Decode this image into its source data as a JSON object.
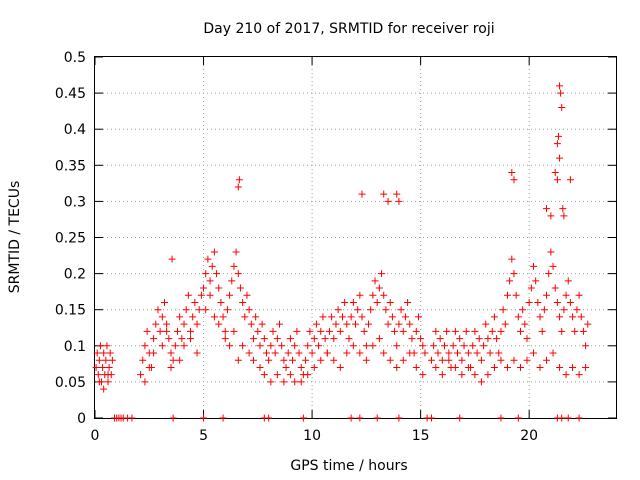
{
  "chart_data": {
    "type": "scatter",
    "title": "Day 210 of 2017, SRMTID for receiver roji",
    "xlabel": "GPS time / hours",
    "ylabel": "SRMTID / TECUs",
    "xlim": [
      0,
      24
    ],
    "ylim": [
      0,
      0.5
    ],
    "xticks": [
      0,
      5,
      10,
      15,
      20
    ],
    "yticks": [
      0,
      0.05,
      0.1,
      0.15,
      0.2,
      0.25,
      0.3,
      0.35,
      0.4,
      0.45,
      0.5
    ],
    "ytick_labels": [
      "0",
      "0.05",
      "0.1",
      "0.15",
      "0.2",
      "0.25",
      "0.3",
      "0.35",
      "0.4",
      "0.45",
      "0.5"
    ],
    "grid": true,
    "marker": "+",
    "color": "#ff0000",
    "series": [
      {
        "name": "SRMTID",
        "x": [
          0.05,
          0.1,
          0.15,
          0.2,
          0.25,
          0.3,
          0.35,
          0.4,
          0.45,
          0.5,
          0.55,
          0.6,
          0.65,
          0.7,
          0.75,
          0.8,
          2.1,
          2.2,
          2.3,
          2.4,
          2.5,
          2.6,
          2.7,
          2.8,
          2.9,
          3.0,
          3.1,
          3.2,
          3.3,
          3.4,
          3.5,
          3.55,
          3.6,
          3.7,
          3.8,
          3.9,
          4.0,
          4.1,
          4.2,
          4.3,
          4.4,
          4.5,
          4.6,
          4.7,
          4.8,
          4.9,
          5.0,
          5.1,
          5.2,
          5.3,
          5.4,
          5.5,
          5.6,
          5.7,
          5.8,
          5.9,
          6.0,
          6.1,
          6.2,
          6.3,
          6.4,
          6.5,
          6.6,
          6.7,
          6.8,
          6.9,
          7.0,
          7.1,
          7.2,
          7.3,
          7.4,
          7.5,
          7.6,
          7.7,
          7.8,
          7.9,
          8.0,
          8.1,
          8.2,
          8.3,
          8.4,
          8.5,
          8.6,
          8.7,
          8.8,
          8.9,
          9.0,
          9.1,
          9.2,
          9.3,
          9.4,
          9.5,
          9.6,
          9.7,
          9.8,
          9.9,
          10.0,
          10.1,
          10.2,
          10.3,
          10.4,
          10.5,
          10.6,
          10.7,
          10.8,
          10.9,
          11.0,
          11.1,
          11.2,
          11.3,
          11.4,
          11.5,
          11.6,
          11.7,
          11.8,
          11.9,
          12.0,
          12.1,
          12.2,
          12.3,
          12.4,
          12.5,
          12.6,
          12.7,
          12.8,
          12.9,
          13.0,
          13.1,
          13.2,
          13.3,
          13.4,
          13.5,
          13.6,
          13.7,
          13.8,
          13.9,
          14.0,
          14.1,
          14.2,
          14.3,
          14.4,
          14.5,
          14.6,
          14.7,
          14.8,
          14.9,
          15.0,
          15.1,
          15.2,
          15.5,
          15.6,
          15.7,
          15.8,
          15.9,
          16.0,
          16.1,
          16.2,
          16.3,
          16.4,
          16.5,
          16.6,
          16.7,
          16.8,
          16.9,
          17.0,
          17.1,
          17.2,
          17.3,
          17.4,
          17.5,
          17.6,
          17.7,
          17.8,
          17.9,
          18.0,
          18.1,
          18.2,
          18.3,
          18.4,
          18.5,
          18.6,
          18.7,
          18.8,
          18.9,
          19.0,
          19.1,
          19.2,
          19.3,
          19.4,
          19.5,
          19.6,
          19.7,
          19.8,
          19.9,
          20.0,
          20.1,
          20.2,
          20.3,
          20.4,
          20.5,
          20.6,
          20.7,
          20.8,
          20.9,
          21.0,
          21.1,
          21.2,
          21.3,
          21.4,
          21.5,
          21.6,
          21.7,
          21.8,
          21.9,
          22.0,
          22.1,
          22.2,
          22.3,
          22.4,
          22.5,
          22.6,
          22.7,
          0.2,
          0.4,
          0.6,
          2.3,
          2.5,
          2.7,
          3.1,
          3.3,
          3.5,
          3.9,
          4.1,
          4.4,
          4.7,
          5.1,
          5.3,
          5.5,
          5.7,
          6.0,
          6.2,
          6.4,
          6.6,
          6.8,
          7.1,
          7.3,
          7.6,
          7.8,
          8.1,
          8.4,
          8.7,
          9.0,
          9.2,
          9.5,
          9.8,
          10.1,
          10.4,
          10.7,
          11.0,
          11.3,
          11.6,
          11.9,
          12.2,
          12.5,
          12.8,
          13.1,
          13.3,
          13.6,
          13.9,
          14.2,
          14.5,
          14.8,
          15.1,
          15.7,
          16.0,
          16.3,
          16.6,
          16.9,
          17.2,
          17.5,
          17.8,
          18.1,
          18.4,
          18.7,
          19.0,
          19.3,
          19.6,
          19.9,
          20.2,
          20.5,
          20.8,
          21.1,
          21.4,
          21.7,
          22.0,
          22.3,
          22.6,
          6.6,
          6.65,
          12.3,
          13.3,
          13.5,
          13.9,
          14.0,
          19.2,
          19.3,
          21.2,
          21.3,
          21.35,
          21.4,
          21.45,
          21.5,
          21.4,
          21.3,
          21.55,
          21.6,
          21.9,
          20.8,
          21.0,
          0.9,
          1.0,
          1.1,
          1.2,
          1.3,
          1.5,
          1.7,
          3.6,
          5.0,
          5.9,
          7.8,
          8.0,
          9.6,
          11.8,
          12.2,
          13.0,
          14.0,
          15.3,
          15.5,
          16.8,
          18.7,
          19.5,
          21.3,
          21.5,
          21.8,
          22.3
        ],
        "y": [
          0.07,
          0.09,
          0.06,
          0.08,
          0.1,
          0.05,
          0.07,
          0.09,
          0.06,
          0.08,
          0.1,
          0.05,
          0.07,
          0.09,
          0.06,
          0.08,
          0.06,
          0.08,
          0.1,
          0.12,
          0.09,
          0.07,
          0.11,
          0.13,
          0.15,
          0.12,
          0.14,
          0.16,
          0.13,
          0.11,
          0.09,
          0.22,
          0.08,
          0.1,
          0.12,
          0.14,
          0.11,
          0.13,
          0.15,
          0.17,
          0.12,
          0.14,
          0.16,
          0.13,
          0.15,
          0.17,
          0.18,
          0.2,
          0.22,
          0.19,
          0.21,
          0.23,
          0.2,
          0.18,
          0.16,
          0.14,
          0.12,
          0.15,
          0.17,
          0.19,
          0.21,
          0.23,
          0.2,
          0.18,
          0.16,
          0.14,
          0.17,
          0.15,
          0.13,
          0.11,
          0.14,
          0.12,
          0.1,
          0.13,
          0.11,
          0.09,
          0.08,
          0.1,
          0.12,
          0.09,
          0.11,
          0.13,
          0.1,
          0.08,
          0.07,
          0.09,
          0.11,
          0.08,
          0.1,
          0.12,
          0.09,
          0.07,
          0.06,
          0.08,
          0.1,
          0.12,
          0.09,
          0.11,
          0.13,
          0.1,
          0.12,
          0.14,
          0.11,
          0.09,
          0.12,
          0.14,
          0.11,
          0.13,
          0.15,
          0.12,
          0.14,
          0.16,
          0.13,
          0.11,
          0.14,
          0.16,
          0.13,
          0.15,
          0.17,
          0.14,
          0.12,
          0.1,
          0.13,
          0.15,
          0.17,
          0.19,
          0.16,
          0.18,
          0.2,
          0.17,
          0.15,
          0.13,
          0.16,
          0.14,
          0.12,
          0.1,
          0.13,
          0.15,
          0.12,
          0.14,
          0.16,
          0.13,
          0.11,
          0.09,
          0.12,
          0.14,
          0.11,
          0.1,
          0.09,
          0.08,
          0.1,
          0.12,
          0.09,
          0.11,
          0.08,
          0.1,
          0.12,
          0.09,
          0.07,
          0.1,
          0.12,
          0.09,
          0.11,
          0.08,
          0.1,
          0.12,
          0.09,
          0.07,
          0.1,
          0.12,
          0.09,
          0.11,
          0.08,
          0.1,
          0.13,
          0.11,
          0.09,
          0.12,
          0.14,
          0.11,
          0.09,
          0.12,
          0.15,
          0.13,
          0.17,
          0.19,
          0.22,
          0.2,
          0.17,
          0.14,
          0.12,
          0.15,
          0.13,
          0.11,
          0.16,
          0.18,
          0.21,
          0.19,
          0.16,
          0.14,
          0.12,
          0.15,
          0.17,
          0.2,
          0.23,
          0.21,
          0.18,
          0.16,
          0.14,
          0.12,
          0.15,
          0.17,
          0.19,
          0.16,
          0.14,
          0.12,
          0.15,
          0.17,
          0.14,
          0.12,
          0.1,
          0.13,
          0.05,
          0.04,
          0.06,
          0.05,
          0.07,
          0.09,
          0.1,
          0.12,
          0.07,
          0.08,
          0.1,
          0.11,
          0.09,
          0.15,
          0.17,
          0.14,
          0.13,
          0.11,
          0.1,
          0.12,
          0.08,
          0.1,
          0.09,
          0.08,
          0.07,
          0.06,
          0.05,
          0.06,
          0.05,
          0.06,
          0.05,
          0.05,
          0.06,
          0.07,
          0.08,
          0.09,
          0.08,
          0.07,
          0.09,
          0.1,
          0.09,
          0.08,
          0.1,
          0.11,
          0.09,
          0.08,
          0.07,
          0.08,
          0.09,
          0.07,
          0.06,
          0.07,
          0.06,
          0.08,
          0.07,
          0.06,
          0.07,
          0.06,
          0.05,
          0.06,
          0.07,
          0.08,
          0.07,
          0.08,
          0.07,
          0.08,
          0.09,
          0.07,
          0.08,
          0.09,
          0.07,
          0.06,
          0.07,
          0.06,
          0.07,
          0.32,
          0.33,
          0.31,
          0.31,
          0.3,
          0.31,
          0.3,
          0.34,
          0.33,
          0.34,
          0.38,
          0.39,
          0.46,
          0.45,
          0.43,
          0.36,
          0.33,
          0.29,
          0.28,
          0.33,
          0.29,
          0.28,
          0,
          0,
          0,
          0,
          0,
          0,
          0,
          0,
          0,
          0,
          0,
          0,
          0,
          0,
          0,
          0,
          0,
          0,
          0,
          0,
          0,
          0,
          0,
          0,
          0,
          0
        ]
      }
    ]
  }
}
